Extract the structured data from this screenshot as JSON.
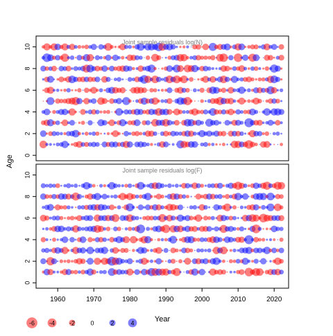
{
  "chart_data": [
    {
      "type": "scatter",
      "title": "Joint sample residuals log(N)",
      "ylabel": "Age",
      "xlim": [
        1954,
        2024
      ],
      "ylim": [
        -0.5,
        11
      ],
      "x_ticks": [
        1960,
        1970,
        1980,
        1990,
        2000,
        2010,
        2020
      ],
      "y_ticks": [
        0,
        2,
        4,
        6,
        8,
        10
      ],
      "years": [
        1956,
        2022
      ],
      "ages": [
        1,
        10
      ],
      "note": "bubble area ~ |residual|, red = negative, blue = positive"
    },
    {
      "type": "scatter",
      "title": "Joint sample residuals log(F)",
      "xlabel": "Year",
      "xlim": [
        1954,
        2024
      ],
      "ylim": [
        -0.5,
        11
      ],
      "x_ticks": [
        1960,
        1970,
        1980,
        1990,
        2000,
        2010,
        2020
      ],
      "y_ticks": [
        0,
        2,
        4,
        6,
        8,
        10
      ],
      "years": [
        1956,
        2022
      ],
      "ages": [
        1,
        9
      ]
    }
  ],
  "legend": {
    "values": [
      -6,
      -4,
      -2,
      0,
      2,
      4
    ],
    "labels": [
      "-6",
      "-4",
      "-2",
      "0",
      "2",
      "4"
    ]
  },
  "colors": {
    "negative": "#ff0000",
    "positive": "#0000ff",
    "title": "#808080",
    "axis": "#000000"
  }
}
